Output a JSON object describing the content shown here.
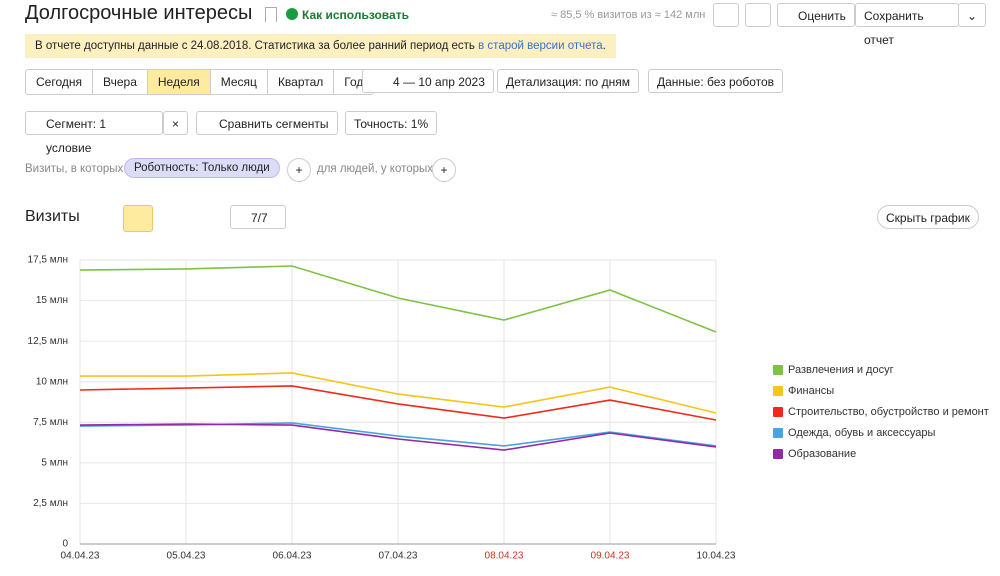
{
  "header": {
    "title": "Долгосрочные интересы",
    "help": "Как использовать",
    "sample": "≈ 85,5 % визитов из ≈ 142 млн",
    "rate": "Оценить",
    "save": "Сохранить отчет"
  },
  "notice": {
    "text": "В отчете доступны данные с 24.08.2018. Статистика за более ранний период есть ",
    "link": "в старой версии отчета",
    "end": "."
  },
  "periods": {
    "items": [
      "Сегодня",
      "Вчера",
      "Неделя",
      "Месяц",
      "Квартал",
      "Год"
    ],
    "active": 2
  },
  "controls": {
    "dates": "4 — 10 апр 2023",
    "detail": "Детализация: по дням",
    "data": "Данные: без роботов",
    "segment": "Сегмент: 1 условие",
    "compare": "Сравнить сегменты",
    "accuracy": "Точность: 1%"
  },
  "filter": {
    "prefix": "Визиты, в которых",
    "chip": "Роботность: Только люди",
    "suffix": "для людей, у которых"
  },
  "chart_header": {
    "title": "Визиты",
    "count": "7/7",
    "hide": "Скрыть график"
  },
  "chart_data": {
    "type": "line",
    "categories": [
      "04.04.23",
      "05.04.23",
      "06.04.23",
      "07.04.23",
      "08.04.23",
      "09.04.23",
      "10.04.23"
    ],
    "category_colors": [
      "#333333",
      "#333333",
      "#333333",
      "#333333",
      "#c0392b",
      "#c0392b",
      "#333333"
    ],
    "ylim": [
      0,
      17.5
    ],
    "yticks": [
      0,
      {
        "value": 2.5,
        "label": "2,5 млн"
      },
      {
        "value": 5,
        "label": "5 млн"
      },
      {
        "value": 7.5,
        "label": "7,5 млн"
      },
      {
        "value": 10,
        "label": "10 млн"
      },
      {
        "value": 12.5,
        "label": "12,5 млн"
      },
      {
        "value": 15,
        "label": "15 млн"
      },
      {
        "value": 17.5,
        "label": "17,5 млн"
      }
    ],
    "grid": true,
    "series": [
      {
        "name": "Развлечения и досуг",
        "color": "#7dc242",
        "values": [
          16.88,
          16.95,
          17.13,
          15.16,
          13.8,
          15.65,
          13.06
        ]
      },
      {
        "name": "Финансы",
        "color": "#f5c518",
        "values": [
          10.35,
          10.35,
          10.54,
          9.24,
          8.44,
          9.67,
          8.07
        ]
      },
      {
        "name": "Строительство, обустройство и ремонт",
        "color": "#ee2a1c",
        "values": [
          9.49,
          9.61,
          9.74,
          8.63,
          7.76,
          8.87,
          7.64
        ]
      },
      {
        "name": "Одежда, обувь и аксессуары",
        "color": "#4aa3df",
        "values": [
          7.27,
          7.33,
          7.46,
          6.65,
          6.04,
          6.9,
          6.04
        ]
      },
      {
        "name": "Образование",
        "color": "#8e2ca8",
        "values": [
          7.33,
          7.39,
          7.33,
          6.47,
          5.79,
          6.84,
          5.98
        ]
      }
    ]
  }
}
